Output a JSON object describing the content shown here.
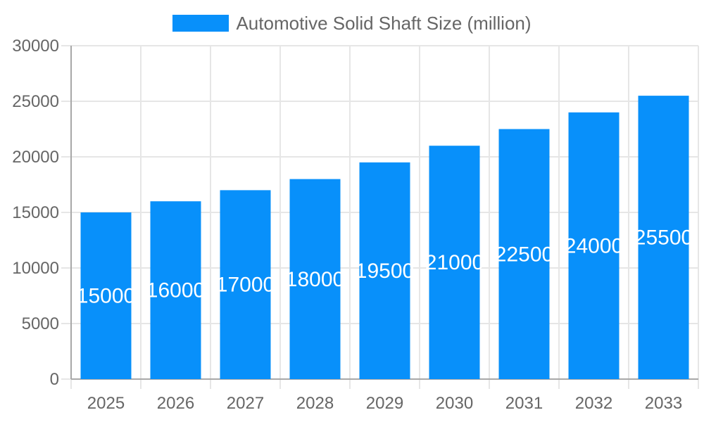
{
  "legend": {
    "position": "top",
    "label": "Automotive Solid Shaft Size (million)"
  },
  "colors": {
    "bar": "#0890FA",
    "grid": "#e6e6e6",
    "axis_border": "#a8a8a8",
    "tick_text": "#666666",
    "legend_text": "#666666",
    "data_label_text": "#ffffff",
    "background": "#ffffff"
  },
  "chart_data": {
    "type": "bar",
    "title": "Automotive Solid Shaft Size (million)",
    "categories": [
      "2025",
      "2026",
      "2027",
      "2028",
      "2029",
      "2030",
      "2031",
      "2032",
      "2033"
    ],
    "series": [
      {
        "name": "Automotive Solid Shaft Size (million)",
        "values": [
          15000,
          16000,
          17000,
          18000,
          19500,
          21000,
          22500,
          24000,
          25500
        ]
      }
    ],
    "data_labels": [
      "15000",
      "16000",
      "17000",
      "18000",
      "19500",
      "21000",
      "22500",
      "24000",
      "25500"
    ],
    "xlabel": "",
    "ylabel": "",
    "ylim": [
      0,
      30000
    ],
    "ytick_step": 5000,
    "yticks": [
      0,
      5000,
      10000,
      15000,
      20000,
      25000,
      30000
    ],
    "grid": true,
    "legend_position": "top"
  }
}
